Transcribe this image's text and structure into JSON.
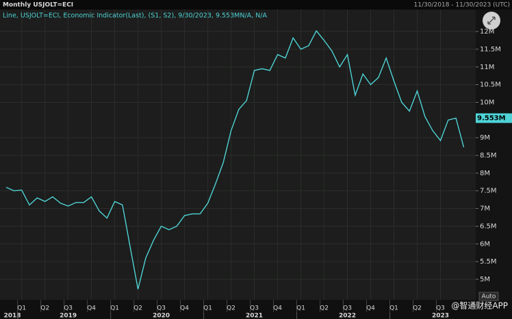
{
  "chart_data": {
    "type": "line",
    "title": "Monthly USJOLT=ECI",
    "date_range": "11/30/2018 - 11/30/2023 (UTC)",
    "legend_text": "Line, USJOLT=ECI, Economic Indicator(Last), (S1, S2), 9/30/2023, 9.553MN/A, N/A",
    "x": [
      "2018-11",
      "2018-12",
      "2019-01",
      "2019-02",
      "2019-03",
      "2019-04",
      "2019-05",
      "2019-06",
      "2019-07",
      "2019-08",
      "2019-09",
      "2019-10",
      "2019-11",
      "2019-12",
      "2020-01",
      "2020-02",
      "2020-03",
      "2020-04",
      "2020-05",
      "2020-06",
      "2020-07",
      "2020-08",
      "2020-09",
      "2020-10",
      "2020-11",
      "2020-12",
      "2021-01",
      "2021-02",
      "2021-03",
      "2021-04",
      "2021-05",
      "2021-06",
      "2021-07",
      "2021-08",
      "2021-09",
      "2021-10",
      "2021-11",
      "2021-12",
      "2022-01",
      "2022-02",
      "2022-03",
      "2022-04",
      "2022-05",
      "2022-06",
      "2022-07",
      "2022-08",
      "2022-09",
      "2022-10",
      "2022-11",
      "2022-12",
      "2023-01",
      "2023-02",
      "2023-03",
      "2023-04",
      "2023-05",
      "2023-06",
      "2023-07",
      "2023-08",
      "2023-09",
      "2023-10"
    ],
    "series": [
      {
        "color": "#4fd3d6",
        "values": [
          7.6,
          7.5,
          7.52,
          7.1,
          7.3,
          7.2,
          7.33,
          7.15,
          7.07,
          7.17,
          7.17,
          7.33,
          6.93,
          6.73,
          7.2,
          7.1,
          5.9,
          4.72,
          5.6,
          6.1,
          6.5,
          6.4,
          6.5,
          6.8,
          6.85,
          6.85,
          7.15,
          7.7,
          8.3,
          9.2,
          9.8,
          10.05,
          10.9,
          10.95,
          10.9,
          11.35,
          11.25,
          11.82,
          11.5,
          11.6,
          12.02,
          11.75,
          11.45,
          11.0,
          11.35,
          10.2,
          10.8,
          10.5,
          10.7,
          11.25,
          10.6,
          10.0,
          9.75,
          10.32,
          9.6,
          9.2,
          8.92,
          9.5,
          9.553,
          8.73
        ],
        "value_labels": [
          null,
          null,
          null,
          null,
          null,
          null,
          null,
          null,
          null,
          null,
          null,
          null,
          null,
          null,
          null,
          null,
          null,
          null,
          null,
          null,
          null,
          null,
          null,
          null,
          null,
          null,
          null,
          null,
          null,
          null,
          null,
          null,
          null,
          null,
          null,
          null,
          null,
          null,
          null,
          null,
          null,
          null,
          null,
          null,
          null,
          null,
          null,
          null,
          null,
          null,
          null,
          null,
          null,
          null,
          null,
          null,
          null,
          null,
          "9.553M",
          null
        ]
      }
    ],
    "ylim": [
      4.42,
      12.62
    ],
    "yticks": [
      {
        "value": 5,
        "label": "5M"
      },
      {
        "value": 5.5,
        "label": "5.5M"
      },
      {
        "value": 6,
        "label": "6M"
      },
      {
        "value": 6.5,
        "label": "6.5M"
      },
      {
        "value": 7,
        "label": "7M"
      },
      {
        "value": 7.5,
        "label": "7.5M"
      },
      {
        "value": 8,
        "label": "8M"
      },
      {
        "value": 8.5,
        "label": "8.5M"
      },
      {
        "value": 9,
        "label": "9M"
      },
      {
        "value": 10,
        "label": "10M"
      },
      {
        "value": 10.5,
        "label": "10.5M"
      },
      {
        "value": 11,
        "label": "11M"
      },
      {
        "value": 11.5,
        "label": "11.5M"
      },
      {
        "value": 12,
        "label": "12M"
      }
    ],
    "quarter_labels": [
      "Q1",
      "Q2",
      "Q3",
      "Q4",
      "Q1",
      "Q2",
      "Q3",
      "Q4",
      "Q1",
      "Q2",
      "Q3",
      "Q4",
      "Q1",
      "Q2",
      "Q3",
      "Q4",
      "Q1",
      "Q2",
      "Q3"
    ],
    "year_labels": [
      "2018",
      "2019",
      "2020",
      "2021",
      "2022",
      "2023"
    ],
    "auto_button": "Auto",
    "watermark": "@智通财经APP",
    "grid": true
  }
}
